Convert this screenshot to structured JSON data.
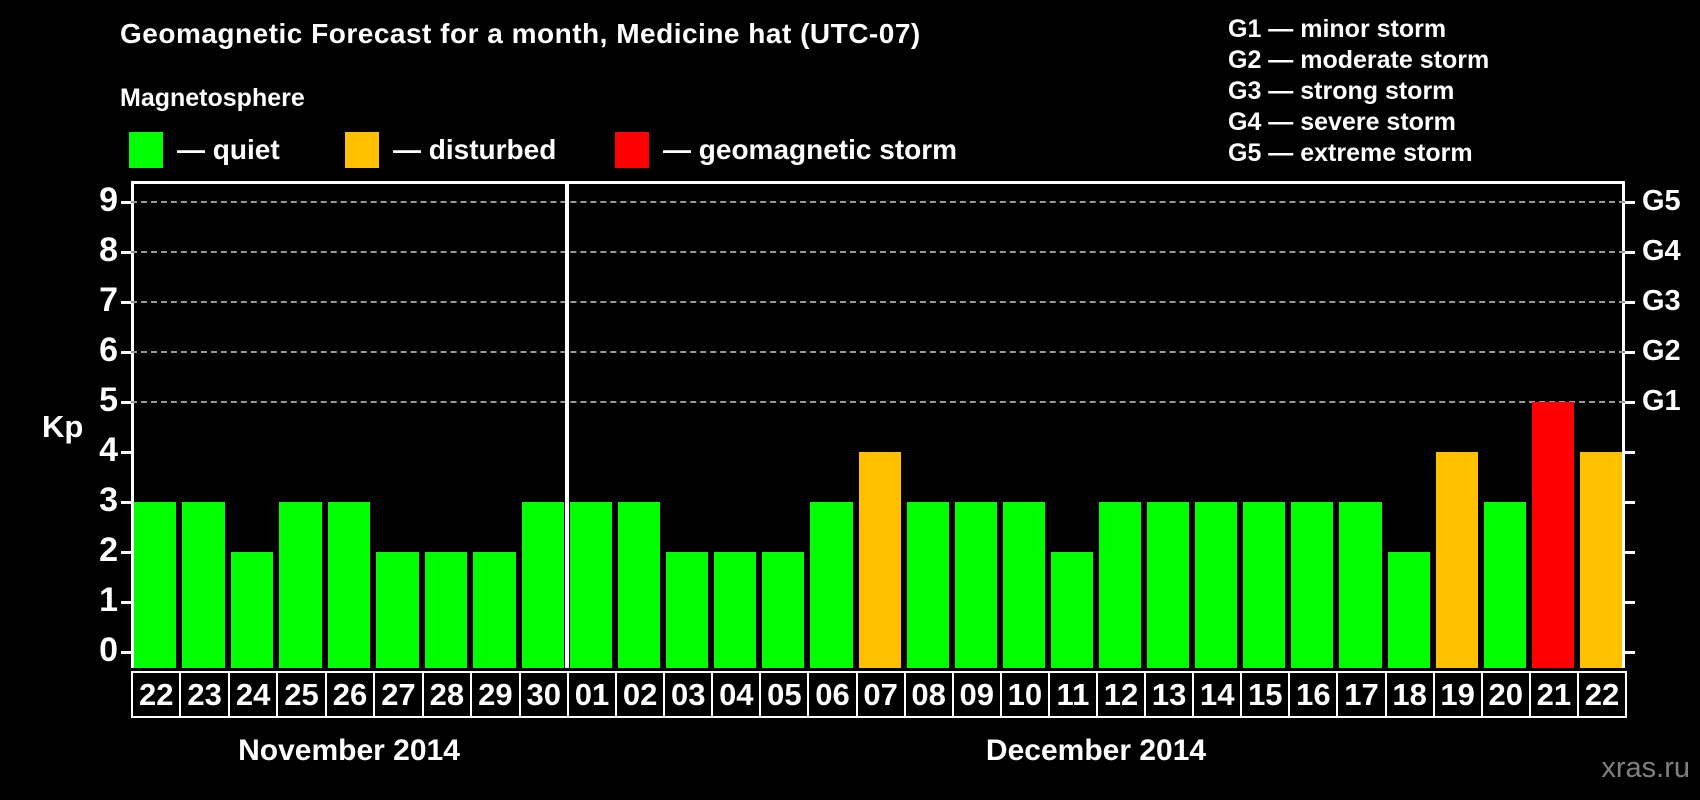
{
  "title": "Geomagnetic Forecast for a month, Medicine hat (UTC-07)",
  "subtitle": "Magnetosphere",
  "legend": {
    "items": [
      {
        "key": "quiet",
        "label": "— quiet",
        "color": "#00ff00"
      },
      {
        "key": "disturbed",
        "label": "— disturbed",
        "color": "#ffc000"
      },
      {
        "key": "storm",
        "label": "— geomagnetic storm",
        "color": "#ff0000"
      }
    ]
  },
  "g_scale_legend": [
    "G1 — minor storm",
    "G2 — moderate storm",
    "G3 — strong storm",
    "G4 — severe storm",
    "G5 — extreme storm"
  ],
  "watermark": "xras.ru",
  "chart_data": {
    "type": "bar",
    "ylabel": "Kp",
    "ylim": [
      0,
      9
    ],
    "y_ticks": [
      0,
      1,
      2,
      3,
      4,
      5,
      6,
      7,
      8,
      9
    ],
    "gridlines_kp": [
      5,
      6,
      7,
      8,
      9
    ],
    "right_axis_labels": [
      {
        "label": "G1",
        "kp": 5
      },
      {
        "label": "G2",
        "kp": 6
      },
      {
        "label": "G3",
        "kp": 7
      },
      {
        "label": "G4",
        "kp": 8
      },
      {
        "label": "G5",
        "kp": 9
      }
    ],
    "status_colors": {
      "quiet": "#00ff00",
      "disturbed": "#ffc000",
      "storm": "#ff0000"
    },
    "months": [
      {
        "label": "November 2014",
        "days": [
          {
            "day": "22",
            "kp": 3,
            "status": "quiet"
          },
          {
            "day": "23",
            "kp": 3,
            "status": "quiet"
          },
          {
            "day": "24",
            "kp": 2,
            "status": "quiet"
          },
          {
            "day": "25",
            "kp": 3,
            "status": "quiet"
          },
          {
            "day": "26",
            "kp": 3,
            "status": "quiet"
          },
          {
            "day": "27",
            "kp": 2,
            "status": "quiet"
          },
          {
            "day": "28",
            "kp": 2,
            "status": "quiet"
          },
          {
            "day": "29",
            "kp": 2,
            "status": "quiet"
          },
          {
            "day": "30",
            "kp": 3,
            "status": "quiet"
          }
        ]
      },
      {
        "label": "December 2014",
        "days": [
          {
            "day": "01",
            "kp": 3,
            "status": "quiet"
          },
          {
            "day": "02",
            "kp": 3,
            "status": "quiet"
          },
          {
            "day": "03",
            "kp": 2,
            "status": "quiet"
          },
          {
            "day": "04",
            "kp": 2,
            "status": "quiet"
          },
          {
            "day": "05",
            "kp": 2,
            "status": "quiet"
          },
          {
            "day": "06",
            "kp": 3,
            "status": "quiet"
          },
          {
            "day": "07",
            "kp": 4,
            "status": "disturbed"
          },
          {
            "day": "08",
            "kp": 3,
            "status": "quiet"
          },
          {
            "day": "09",
            "kp": 3,
            "status": "quiet"
          },
          {
            "day": "10",
            "kp": 3,
            "status": "quiet"
          },
          {
            "day": "11",
            "kp": 2,
            "status": "quiet"
          },
          {
            "day": "12",
            "kp": 3,
            "status": "quiet"
          },
          {
            "day": "13",
            "kp": 3,
            "status": "quiet"
          },
          {
            "day": "14",
            "kp": 3,
            "status": "quiet"
          },
          {
            "day": "15",
            "kp": 3,
            "status": "quiet"
          },
          {
            "day": "16",
            "kp": 3,
            "status": "quiet"
          },
          {
            "day": "17",
            "kp": 3,
            "status": "quiet"
          },
          {
            "day": "18",
            "kp": 2,
            "status": "quiet"
          },
          {
            "day": "19",
            "kp": 4,
            "status": "disturbed"
          },
          {
            "day": "20",
            "kp": 3,
            "status": "quiet"
          },
          {
            "day": "21",
            "kp": 5,
            "status": "storm"
          },
          {
            "day": "22",
            "kp": 4,
            "status": "disturbed"
          }
        ]
      }
    ]
  }
}
